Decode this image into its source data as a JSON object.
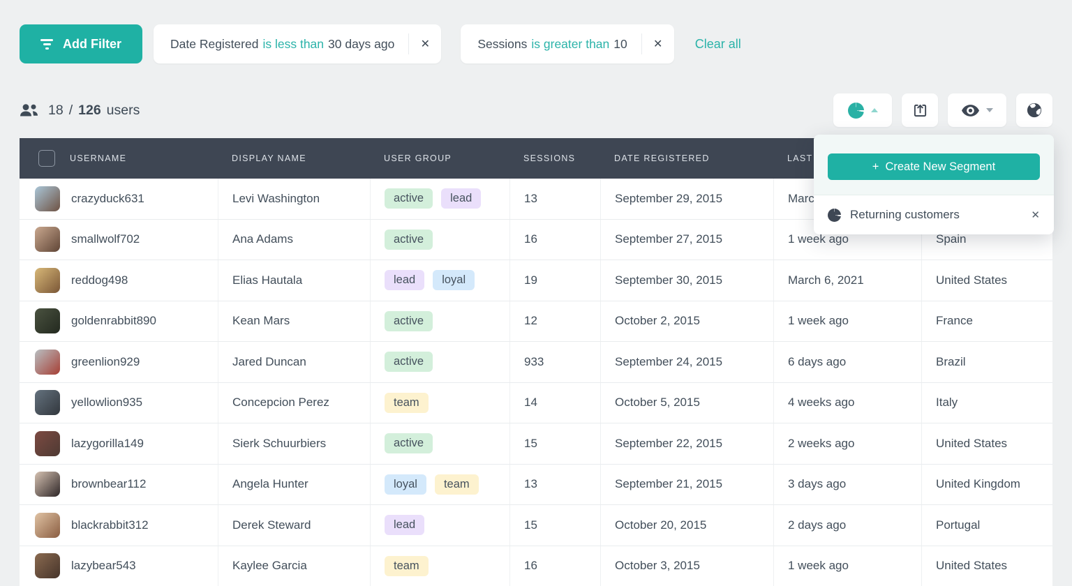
{
  "colors": {
    "accent": "#1fb1a4",
    "link": "#2bb3a9",
    "header_bg": "#3e4653",
    "body_text": "#424e5a",
    "badge_text": "#46525e",
    "badges": {
      "active": "#d3efdb",
      "lead": "#eadffb",
      "loyal": "#d4e9fb",
      "team": "#fdf2cf"
    }
  },
  "icons": {
    "close": "✕",
    "plus": "+"
  },
  "filter_bar": {
    "add_filter_label": "Add Filter",
    "filters": [
      {
        "field": "Date Registered",
        "operator": "is less than",
        "value": "30 days ago"
      },
      {
        "field": "Sessions",
        "operator": "is greater than",
        "value": "10"
      }
    ],
    "clear_all_label": "Clear all"
  },
  "stats": {
    "shown": "18",
    "separator": "/",
    "total": "126",
    "label": "users"
  },
  "toolbar": {
    "buttons": [
      {
        "id": "segments",
        "icon": "pie-chart-icon",
        "caret": "up",
        "active": true
      },
      {
        "id": "export",
        "icon": "export-icon",
        "caret": null
      },
      {
        "id": "visibility",
        "icon": "eye-icon",
        "caret": "down"
      },
      {
        "id": "region",
        "icon": "globe-icon",
        "caret": null
      }
    ]
  },
  "segments_panel": {
    "create_button_label": "Create New Segment",
    "items": [
      {
        "label": "Returning customers",
        "icon": "pie-chart-icon"
      }
    ]
  },
  "table": {
    "columns": [
      "USERNAME",
      "DISPLAY NAME",
      "USER GROUP",
      "SESSIONS",
      "DATE REGISTERED",
      "LAST SEEN",
      ""
    ],
    "rows": [
      {
        "username": "crazyduck631",
        "display_name": "Levi Washington",
        "groups": [
          "active",
          "lead"
        ],
        "sessions": "13",
        "date_registered": "September 29, 2015",
        "last_seen": "March",
        "country": "",
        "avatar": [
          "#aac6d8",
          "#6e5243"
        ]
      },
      {
        "username": "smallwolf702",
        "display_name": "Ana Adams",
        "groups": [
          "active"
        ],
        "sessions": "16",
        "date_registered": "September 27, 2015",
        "last_seen": "1 week ago",
        "country": "Spain",
        "avatar": [
          "#caa88f",
          "#5f4536"
        ]
      },
      {
        "username": "reddog498",
        "display_name": "Elias Hautala",
        "groups": [
          "lead",
          "loyal"
        ],
        "sessions": "19",
        "date_registered": "September 30, 2015",
        "last_seen": "March 6, 2021",
        "country": "United States",
        "avatar": [
          "#d8b878",
          "#7a5636"
        ]
      },
      {
        "username": "goldenrabbit890",
        "display_name": "Kean Mars",
        "groups": [
          "active"
        ],
        "sessions": "12",
        "date_registered": "October 2, 2015",
        "last_seen": "1 week ago",
        "country": "France",
        "avatar": [
          "#4a5240",
          "#23291f"
        ]
      },
      {
        "username": "greenlion929",
        "display_name": "Jared Duncan",
        "groups": [
          "active"
        ],
        "sessions": "933",
        "date_registered": "September 24, 2015",
        "last_seen": "6 days ago",
        "country": "Brazil",
        "avatar": [
          "#b9bfc2",
          "#a63f35"
        ]
      },
      {
        "username": "yellowlion935",
        "display_name": "Concepcion Perez",
        "groups": [
          "team"
        ],
        "sessions": "14",
        "date_registered": "October 5, 2015",
        "last_seen": "4 weeks ago",
        "country": "Italy",
        "avatar": [
          "#64727e",
          "#32373d"
        ]
      },
      {
        "username": "lazygorilla149",
        "display_name": "Sierk Schuurbiers",
        "groups": [
          "active"
        ],
        "sessions": "15",
        "date_registered": "September 22, 2015",
        "last_seen": "2 weeks ago",
        "country": "United States",
        "avatar": [
          "#7c4a42",
          "#4e3a33"
        ]
      },
      {
        "username": "brownbear112",
        "display_name": "Angela Hunter",
        "groups": [
          "loyal",
          "team"
        ],
        "sessions": "13",
        "date_registered": "September 21, 2015",
        "last_seen": "3 days ago",
        "country": "United Kingdom",
        "avatar": [
          "#d6c2b2",
          "#2e2627"
        ]
      },
      {
        "username": "blackrabbit312",
        "display_name": "Derek Steward",
        "groups": [
          "lead"
        ],
        "sessions": "15",
        "date_registered": "October 20, 2015",
        "last_seen": "2 days ago",
        "country": "Portugal",
        "avatar": [
          "#e0c3a4",
          "#8a5d41"
        ]
      },
      {
        "username": "lazybear543",
        "display_name": "Kaylee Garcia",
        "groups": [
          "team"
        ],
        "sessions": "16",
        "date_registered": "October 3, 2015",
        "last_seen": "1 week ago",
        "country": "United States",
        "avatar": [
          "#8a6a50",
          "#46342a"
        ]
      }
    ]
  }
}
